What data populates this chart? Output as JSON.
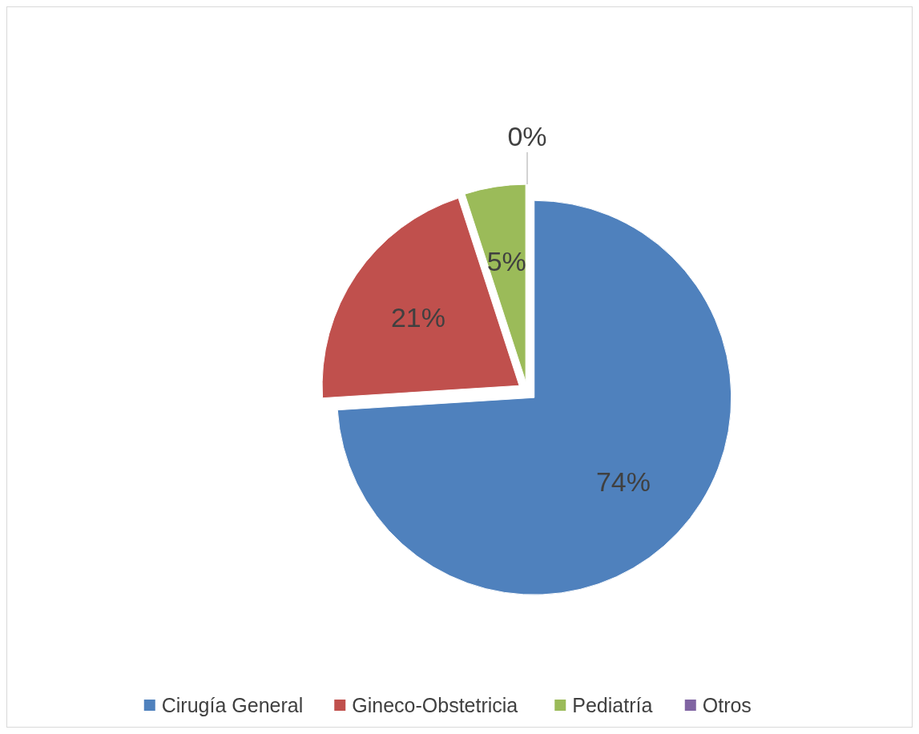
{
  "chart_data": {
    "type": "pie",
    "categories": [
      "Cirugía General",
      "Gineco-Obstetricia",
      "Pediatría",
      "Otros"
    ],
    "values": [
      74,
      21,
      5,
      0
    ],
    "colors": [
      "#4f81bd",
      "#c0504d",
      "#9bbb59",
      "#8064a2"
    ],
    "value_labels": [
      "74%",
      "21%",
      "5%",
      "0%"
    ],
    "legend": "bottom"
  }
}
